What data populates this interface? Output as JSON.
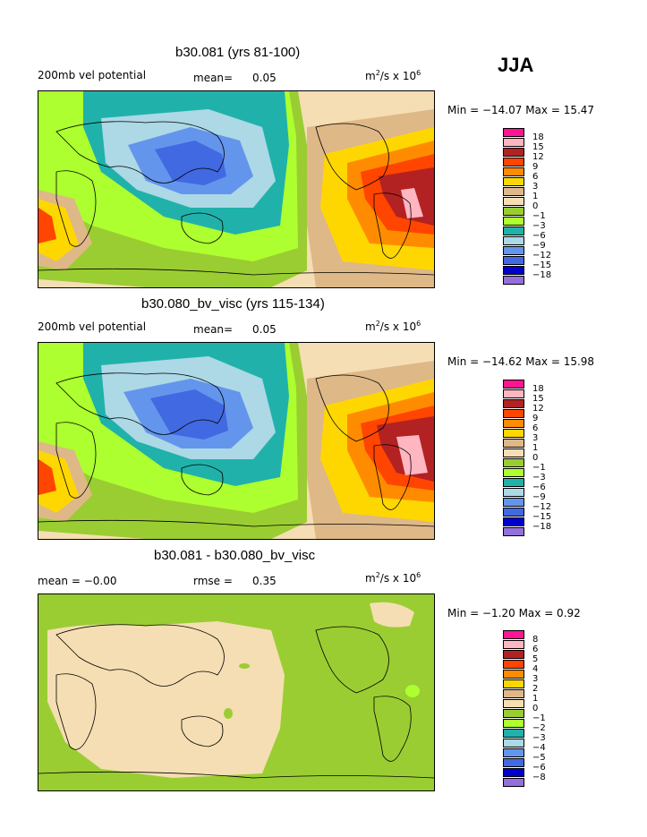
{
  "season": "JJA",
  "panels": [
    {
      "title": "b30.081 (yrs 81-100)",
      "left_label": "200mb vel potential",
      "mean_label": "mean=",
      "mean_value": "0.05",
      "units_base": "m",
      "units_exp": "2",
      "units_mid": "/s x 10",
      "units_exp2": "6",
      "minmax": "Min = −14.07 Max =  15.47"
    },
    {
      "title": "b30.080_bv_visc (yrs 115-134)",
      "left_label": "200mb vel potential",
      "mean_label": "mean=",
      "mean_value": "0.05",
      "units_base": "m",
      "units_exp": "2",
      "units_mid": "/s x 10",
      "units_exp2": "6",
      "minmax": "Min = −14.62 Max =  15.98"
    },
    {
      "title": "b30.081 - b30.080_bv_visc",
      "left_label": "mean =   −0.00",
      "rmse_label": "rmse =",
      "rmse_value": "0.35",
      "units_base": "m",
      "units_exp": "2",
      "units_mid": "/s x 10",
      "units_exp2": "6",
      "minmax": "Min =  −1.20 Max =   0.92"
    }
  ],
  "colorbar_main": {
    "colors": [
      "#ff1493",
      "#ffb6c1",
      "#b22222",
      "#ff4500",
      "#ff8c00",
      "#ffd700",
      "#deb887",
      "#f5deb3",
      "#9acd32",
      "#adff2f",
      "#20b2aa",
      "#add8e6",
      "#6495ed",
      "#4169e1",
      "#0000cd",
      "#9370db"
    ],
    "ticks": [
      "18",
      "15",
      "12",
      "9",
      "6",
      "3",
      "1",
      "0",
      "−1",
      "−3",
      "−6",
      "−9",
      "−12",
      "−15",
      "−18"
    ]
  },
  "colorbar_diff": {
    "colors": [
      "#ff1493",
      "#ffb6c1",
      "#b22222",
      "#ff4500",
      "#ff8c00",
      "#ffd700",
      "#deb887",
      "#f5deb3",
      "#9acd32",
      "#adff2f",
      "#20b2aa",
      "#add8e6",
      "#6495ed",
      "#4169e1",
      "#0000cd",
      "#9370db"
    ],
    "ticks": [
      "8",
      "6",
      "5",
      "4",
      "3",
      "2",
      "1",
      "0",
      "−1",
      "−2",
      "−3",
      "−4",
      "−5",
      "−6",
      "−8"
    ]
  }
}
